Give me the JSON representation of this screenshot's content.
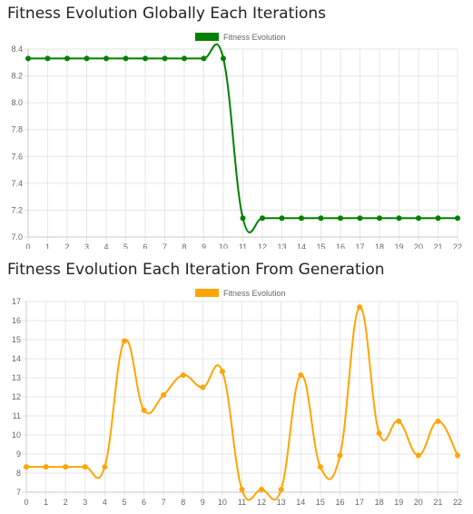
{
  "chart_data": [
    {
      "type": "line",
      "title": "Fitness Evolution Globally Each Iterations",
      "legend_position": "top-center",
      "grid": true,
      "color": "#008000",
      "x": [
        0,
        1,
        2,
        3,
        4,
        5,
        6,
        7,
        8,
        9,
        10,
        11,
        12,
        13,
        14,
        15,
        16,
        17,
        18,
        19,
        20,
        21,
        22
      ],
      "x_ticks": [
        "0",
        "1",
        "2",
        "3",
        "4",
        "5",
        "6",
        "7",
        "8",
        "9",
        "10",
        "11",
        "12",
        "13",
        "14",
        "15",
        "16",
        "17",
        "18",
        "19",
        "20",
        "21",
        "22"
      ],
      "ylim": [
        7.0,
        8.4
      ],
      "y_ticks": [
        "7.0",
        "7.2",
        "7.4",
        "7.6",
        "7.8",
        "8.0",
        "8.2",
        "8.4"
      ],
      "series": [
        {
          "name": "Fitness Evolution",
          "values": [
            8.33,
            8.33,
            8.33,
            8.33,
            8.33,
            8.33,
            8.33,
            8.33,
            8.33,
            8.33,
            8.33,
            7.14,
            7.14,
            7.14,
            7.14,
            7.14,
            7.14,
            7.14,
            7.14,
            7.14,
            7.14,
            7.14,
            7.14
          ]
        }
      ]
    },
    {
      "type": "line",
      "title": "Fitness Evolution Each Iteration From Generation",
      "legend_position": "top-center",
      "grid": true,
      "color": "#FFA500",
      "x": [
        0,
        1,
        2,
        3,
        4,
        5,
        6,
        7,
        8,
        9,
        10,
        11,
        12,
        13,
        14,
        15,
        16,
        17,
        18,
        19,
        20,
        21,
        22
      ],
      "x_ticks": [
        "0",
        "1",
        "2",
        "3",
        "4",
        "5",
        "6",
        "7",
        "8",
        "9",
        "10",
        "11",
        "12",
        "13",
        "14",
        "15",
        "16",
        "17",
        "18",
        "19",
        "20",
        "21",
        "22"
      ],
      "ylim": [
        7,
        17
      ],
      "y_ticks": [
        "7",
        "8",
        "9",
        "10",
        "11",
        "12",
        "13",
        "14",
        "15",
        "16",
        "17"
      ],
      "series": [
        {
          "name": "Fitness Evolution",
          "values": [
            8.33,
            8.33,
            8.33,
            8.33,
            8.33,
            14.93,
            11.3,
            12.1,
            13.14,
            12.5,
            13.33,
            7.14,
            7.14,
            7.14,
            13.14,
            8.33,
            8.93,
            16.7,
            10.09,
            10.72,
            8.93,
            10.72,
            8.93
          ]
        }
      ]
    }
  ]
}
